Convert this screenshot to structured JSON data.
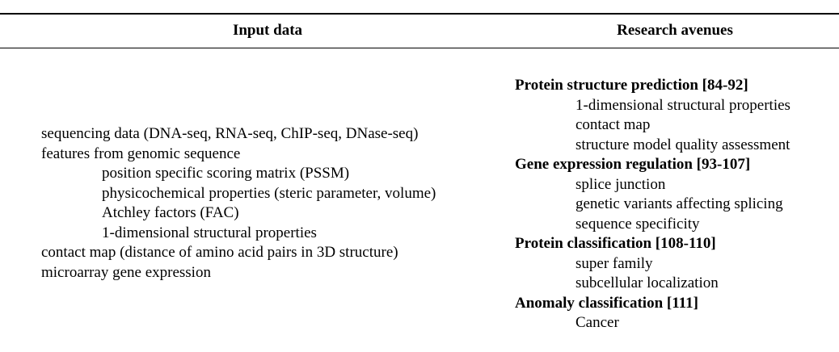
{
  "table": {
    "headers": {
      "input": "Input data",
      "research": "Research avenues"
    },
    "input_items": [
      "sequencing data (DNA-seq, RNA-seq, ChIP-seq, DNase-seq)",
      "features from genomic sequence",
      "position specific scoring matrix (PSSM)",
      "physicochemical properties (steric parameter, volume)",
      "Atchley factors (FAC)",
      "1-dimensional structural properties",
      "contact map (distance of amino acid pairs in 3D structure)",
      "microarray gene expression"
    ],
    "research_items": [
      "Protein structure prediction [84-92]",
      "1-dimensional structural properties",
      "contact map",
      "structure model quality assessment",
      "Gene expression regulation [93-107]",
      "splice junction",
      "genetic variants affecting splicing",
      "sequence specificity",
      "Protein classification [108-110]",
      "super family",
      "subcellular localization",
      "Anomaly classification [111]",
      "Cancer"
    ]
  }
}
